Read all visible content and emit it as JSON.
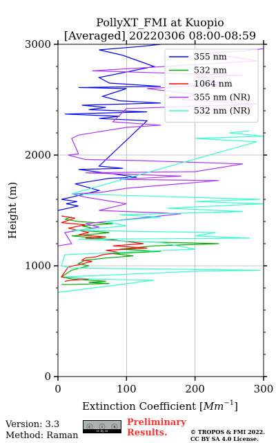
{
  "chart_data": {
    "type": "line",
    "title": "PollyXT_FMI at Kuopio",
    "subtitle": "[Averaged] 20220306 08:00-08:59",
    "xlabel_text": "Extinction Coefficient [",
    "xlabel_unit": "Mm",
    "xlabel_exp": "−1",
    "xlabel_close": "]",
    "ylabel": "Height (m)",
    "xlim": [
      0,
      300
    ],
    "ylim": [
      0,
      3000
    ],
    "xticks": [
      "0",
      "100",
      "200",
      "300"
    ],
    "yticks": [
      "0",
      "1000",
      "2000",
      "3000"
    ],
    "grid": true,
    "legend_position": "top-right",
    "series": [
      {
        "name": "355 nm",
        "color": "#0000ff",
        "points": [
          [
            0,
            1500
          ],
          [
            30,
            1540
          ],
          [
            12,
            1560
          ],
          [
            28,
            1580
          ],
          [
            5,
            1600
          ],
          [
            20,
            1620
          ],
          [
            60,
            1680
          ],
          [
            25,
            1740
          ],
          [
            75,
            1790
          ],
          [
            115,
            1800
          ],
          [
            80,
            1830
          ],
          [
            30,
            1870
          ],
          [
            95,
            1880
          ],
          [
            60,
            1900
          ],
          [
            130,
            2310
          ],
          [
            60,
            2330
          ],
          [
            90,
            2350
          ],
          [
            10,
            2370
          ],
          [
            130,
            2390
          ],
          [
            45,
            2410
          ],
          [
            70,
            2430
          ],
          [
            35,
            2450
          ],
          [
            150,
            2470
          ],
          [
            90,
            2490
          ],
          [
            65,
            2530
          ],
          [
            100,
            2600
          ],
          [
            30,
            2610
          ],
          [
            150,
            2620
          ],
          [
            75,
            2650
          ],
          [
            60,
            2700
          ],
          [
            140,
            2800
          ],
          [
            95,
            2900
          ],
          [
            60,
            2950
          ],
          [
            120,
            2980
          ],
          [
            150,
            3000
          ]
        ]
      },
      {
        "name": "532 nm",
        "color": "#00aa00",
        "points": [
          [
            5,
            830
          ],
          [
            75,
            840
          ],
          [
            45,
            850
          ],
          [
            70,
            860
          ],
          [
            20,
            880
          ],
          [
            5,
            900
          ],
          [
            20,
            960
          ],
          [
            45,
            1000
          ],
          [
            30,
            1020
          ],
          [
            40,
            1050
          ],
          [
            70,
            1070
          ],
          [
            110,
            1090
          ],
          [
            80,
            1110
          ],
          [
            150,
            1130
          ],
          [
            90,
            1150
          ],
          [
            140,
            1180
          ],
          [
            235,
            1200
          ],
          [
            100,
            1220
          ],
          [
            60,
            1250
          ],
          [
            20,
            1270
          ],
          [
            60,
            1290
          ],
          [
            75,
            1300
          ],
          [
            30,
            1320
          ],
          [
            50,
            1340
          ],
          [
            35,
            1360
          ],
          [
            80,
            1380
          ],
          [
            30,
            1400
          ],
          [
            10,
            1420
          ],
          [
            20,
            1440
          ]
        ]
      },
      {
        "name": "1064 nm",
        "color": "#ff0000",
        "points": [
          [
            10,
            860
          ],
          [
            20,
            870
          ],
          [
            45,
            880
          ],
          [
            5,
            900
          ],
          [
            15,
            990
          ],
          [
            30,
            1010
          ],
          [
            50,
            1040
          ],
          [
            35,
            1050
          ],
          [
            40,
            1070
          ],
          [
            55,
            1080
          ],
          [
            65,
            1100
          ],
          [
            90,
            1120
          ],
          [
            70,
            1140
          ],
          [
            130,
            1160
          ],
          [
            80,
            1180
          ],
          [
            125,
            1200
          ],
          [
            100,
            1220
          ],
          [
            70,
            1240
          ],
          [
            40,
            1250
          ],
          [
            70,
            1260
          ],
          [
            30,
            1280
          ],
          [
            45,
            1300
          ],
          [
            30,
            1320
          ],
          [
            15,
            1340
          ],
          [
            40,
            1370
          ],
          [
            5,
            1390
          ],
          [
            25,
            1430
          ],
          [
            5,
            1450
          ]
        ]
      },
      {
        "name": "355 nm (NR)",
        "color": "#aa33ff",
        "points": [
          [
            0,
            1180
          ],
          [
            20,
            1200
          ],
          [
            10,
            1300
          ],
          [
            60,
            1350
          ],
          [
            40,
            1380
          ],
          [
            180,
            1470
          ],
          [
            60,
            1500
          ],
          [
            100,
            1560
          ],
          [
            40,
            1620
          ],
          [
            20,
            1650
          ],
          [
            60,
            1660
          ],
          [
            100,
            1700
          ],
          [
            235,
            1770
          ],
          [
            90,
            1780
          ],
          [
            180,
            1810
          ],
          [
            40,
            1840
          ],
          [
            200,
            1850
          ],
          [
            270,
            1920
          ],
          [
            120,
            1950
          ],
          [
            40,
            1960
          ],
          [
            15,
            2000
          ],
          [
            30,
            2010
          ],
          [
            20,
            2150
          ],
          [
            30,
            2180
          ],
          [
            100,
            2250
          ],
          [
            150,
            2270
          ],
          [
            80,
            2300
          ],
          [
            100,
            2420
          ],
          [
            290,
            2460
          ],
          [
            180,
            2500
          ],
          [
            200,
            2550
          ],
          [
            130,
            2600
          ],
          [
            240,
            2640
          ],
          [
            200,
            2700
          ],
          [
            270,
            2720
          ],
          [
            50,
            2760
          ],
          [
            290,
            2850
          ],
          [
            240,
            2900
          ],
          [
            210,
            2920
          ],
          [
            270,
            2940
          ],
          [
            300,
            2960
          ]
        ]
      },
      {
        "name": "532 nm (NR)",
        "color": "#33ffcc",
        "points": [
          [
            0,
            760
          ],
          [
            140,
            870
          ],
          [
            50,
            880
          ],
          [
            10,
            900
          ],
          [
            200,
            950
          ],
          [
            295,
            960
          ],
          [
            20,
            980
          ],
          [
            5,
            1000
          ],
          [
            10,
            1100
          ],
          [
            200,
            1150
          ],
          [
            150,
            1210
          ],
          [
            30,
            1240
          ],
          [
            280,
            1250
          ],
          [
            200,
            1270
          ],
          [
            230,
            1300
          ],
          [
            20,
            1320
          ],
          [
            100,
            1360
          ],
          [
            70,
            1400
          ],
          [
            150,
            1440
          ],
          [
            90,
            1460
          ],
          [
            270,
            1490
          ],
          [
            160,
            1520
          ],
          [
            300,
            1560
          ],
          [
            200,
            1580
          ],
          [
            295,
            1600
          ],
          [
            20,
            1650
          ],
          [
            290,
            2120
          ],
          [
            200,
            2150
          ],
          [
            300,
            2170
          ],
          [
            250,
            2200
          ],
          [
            280,
            2220
          ]
        ]
      }
    ]
  },
  "footer": {
    "version": "Version: 3.3",
    "method": "Method: Raman",
    "license_badge": "cc by sa",
    "preliminary_line1": "Preliminary",
    "preliminary_line2": "Results.",
    "copyright_line1": "© TROPOS & FMI 2022.",
    "copyright_line2": "CC BY SA 4.0 License."
  }
}
